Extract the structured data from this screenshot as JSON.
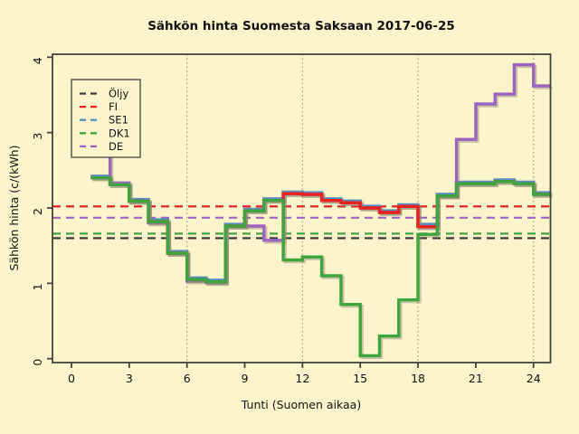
{
  "chart_data": {
    "type": "line",
    "subtype": "step",
    "title": "Sähkön hinta Suomesta Saksaan 2017-06-25",
    "xlabel": "Tunti (Suomen aikaa)",
    "ylabel": "Sähkön hinta (c/(kWh)",
    "x_ticks": [
      0,
      3,
      6,
      9,
      12,
      15,
      18,
      21,
      24
    ],
    "y_ticks": [
      0,
      1,
      2,
      3,
      4
    ],
    "xlim": [
      -1,
      24.9
    ],
    "ylim": [
      -0.05,
      4.04
    ],
    "x_gridlines": [
      6,
      12,
      18,
      24
    ],
    "grid": "vertical-dotted-only",
    "legend_position": "top-left",
    "start_hour": 1,
    "hours": [
      1,
      2,
      3,
      4,
      5,
      6,
      7,
      8,
      9,
      10,
      11,
      12,
      13,
      14,
      15,
      16,
      17,
      18,
      19,
      20,
      21,
      22,
      23,
      24
    ],
    "series": [
      {
        "name": "SE1",
        "color": "#5B8EC0",
        "values": [
          2.4,
          2.31,
          2.09,
          1.82,
          1.4,
          1.05,
          1.02,
          1.76,
          1.96,
          2.1,
          2.19,
          2.18,
          2.1,
          2.07,
          2.0,
          1.94,
          2.02,
          1.76,
          2.16,
          2.32,
          2.32,
          2.35,
          2.32,
          2.18
        ]
      },
      {
        "name": "DE",
        "color": "#9C63C1",
        "values": [
          2.8,
          2.33,
          2.09,
          1.8,
          1.4,
          1.03,
          1.01,
          1.76,
          1.76,
          1.57,
          2.19,
          2.18,
          2.1,
          2.07,
          2.0,
          1.94,
          2.02,
          1.75,
          2.16,
          2.91,
          3.38,
          3.51,
          3.9,
          3.62
        ]
      },
      {
        "name": "FI",
        "color": "#E9221D",
        "values": [
          2.4,
          2.31,
          2.09,
          1.82,
          1.4,
          1.05,
          1.02,
          1.76,
          1.96,
          2.1,
          2.19,
          2.18,
          2.1,
          2.07,
          2.0,
          1.94,
          2.02,
          1.75,
          2.16,
          2.32,
          2.32,
          2.35,
          2.32,
          2.18
        ]
      },
      {
        "name": "DK1",
        "color": "#3EA43E",
        "values": [
          2.4,
          2.31,
          2.09,
          1.82,
          1.4,
          1.05,
          1.02,
          1.76,
          1.96,
          2.1,
          1.31,
          1.35,
          1.1,
          0.72,
          0.04,
          0.3,
          0.78,
          1.65,
          2.16,
          2.32,
          2.32,
          2.35,
          2.32,
          2.18
        ]
      }
    ],
    "reference_lines": [
      {
        "name": "SE1",
        "value": 2.02,
        "color": "#5B8EC0"
      },
      {
        "name": "DK1",
        "value": 1.66,
        "color": "#3EA43E"
      },
      {
        "name": "Öljy",
        "value": 1.6,
        "color": "#3C3C3C"
      },
      {
        "name": "DE",
        "value": 1.87,
        "color": "#9C63C1"
      },
      {
        "name": "FI",
        "value": 2.02,
        "color": "#E9221D"
      }
    ],
    "legend": {
      "entries": [
        {
          "label": "Öljy",
          "color": "#3C3C3C"
        },
        {
          "label": "FI",
          "color": "#E9221D"
        },
        {
          "label": "SE1",
          "color": "#5B8EC0"
        },
        {
          "label": "DK1",
          "color": "#3EA43E"
        },
        {
          "label": "DE",
          "color": "#9C63C1"
        }
      ]
    },
    "colors": {
      "background": "#FCF5CB",
      "axis": "#45443E",
      "gridline": "#97927E",
      "shadow": "#8E8A74"
    }
  }
}
